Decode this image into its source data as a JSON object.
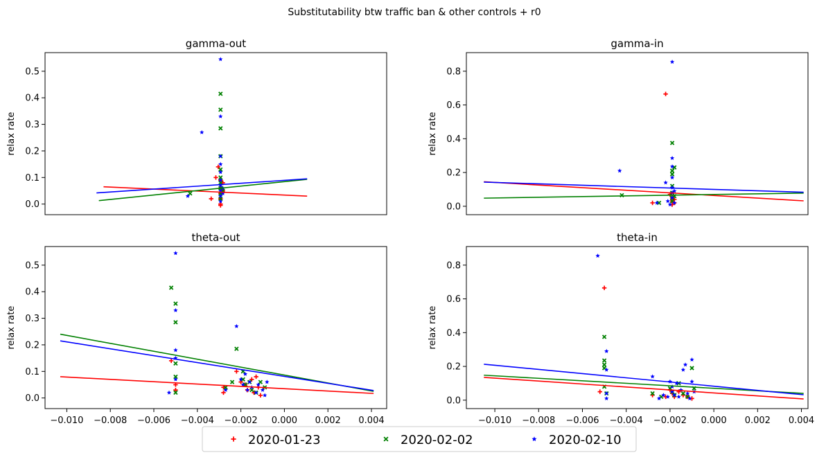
{
  "figure": {
    "title": "Substitutability btw traffic ban & other controls + r0",
    "legend": {
      "placement": "bottom-center",
      "entries": [
        {
          "label": "2020-01-23",
          "color": "#ff0000",
          "marker": "plus"
        },
        {
          "label": "2020-02-02",
          "color": "#008000",
          "marker": "x"
        },
        {
          "label": "2020-02-10",
          "color": "#0000ff",
          "marker": "star"
        }
      ]
    }
  },
  "chart_data": [
    {
      "type": "scatter",
      "title": "gamma-out",
      "xlabel": "",
      "ylabel": "relax rate",
      "xlim": [
        -0.0103,
        0.0043
      ],
      "ylim": [
        -0.04,
        0.57
      ],
      "show_xticks": false,
      "yticks": [
        0.0,
        0.1,
        0.2,
        0.3,
        0.4,
        0.5
      ],
      "ytick_labels": [
        "0.0",
        "0.1",
        "0.2",
        "0.3",
        "0.4",
        "0.5"
      ],
      "series": [
        {
          "name": "2020-01-23",
          "color": "#ff0000",
          "marker": "plus",
          "points": [
            [
              -0.0032,
              0.02
            ],
            [
              -0.003,
              0.1
            ],
            [
              -0.0029,
              0.14
            ],
            [
              -0.0028,
              0.09
            ],
            [
              -0.0028,
              0.06
            ],
            [
              -0.0028,
              0.04
            ],
            [
              -0.0028,
              0.02
            ],
            [
              -0.0028,
              0.0
            ],
            [
              -0.0028,
              -0.005
            ],
            [
              -0.0027,
              0.05
            ],
            [
              -0.0027,
              0.08
            ]
          ],
          "fit": [
            [
              -0.0078,
              0.065
            ],
            [
              0.0009,
              0.03
            ]
          ]
        },
        {
          "name": "2020-02-02",
          "color": "#008000",
          "marker": "x",
          "points": [
            [
              -0.0041,
              0.04
            ],
            [
              -0.0028,
              0.415
            ],
            [
              -0.0028,
              0.355
            ],
            [
              -0.0028,
              0.285
            ],
            [
              -0.0028,
              0.18
            ],
            [
              -0.0028,
              0.13
            ],
            [
              -0.0028,
              0.1
            ],
            [
              -0.0028,
              0.08
            ],
            [
              -0.0028,
              0.06
            ],
            [
              -0.0028,
              0.04
            ],
            [
              -0.0028,
              0.02
            ],
            [
              -0.0027,
              0.05
            ]
          ],
          "fit": [
            [
              -0.008,
              0.013
            ],
            [
              0.0009,
              0.093
            ]
          ]
        },
        {
          "name": "2020-02-10",
          "color": "#0000ff",
          "marker": "star",
          "points": [
            [
              -0.0042,
              0.03
            ],
            [
              -0.0036,
              0.27
            ],
            [
              -0.0028,
              0.545
            ],
            [
              -0.0028,
              0.33
            ],
            [
              -0.0028,
              0.18
            ],
            [
              -0.0028,
              0.15
            ],
            [
              -0.0028,
              0.12
            ],
            [
              -0.0028,
              0.09
            ],
            [
              -0.0028,
              0.07
            ],
            [
              -0.0028,
              0.05
            ],
            [
              -0.0028,
              0.03
            ],
            [
              -0.0028,
              0.01
            ],
            [
              -0.0027,
              0.06
            ],
            [
              -0.0027,
              0.04
            ]
          ],
          "fit": [
            [
              -0.0081,
              0.042
            ],
            [
              0.0009,
              0.095
            ]
          ]
        }
      ]
    },
    {
      "type": "scatter",
      "title": "gamma-in",
      "xlabel": "",
      "ylabel": "relax rate",
      "xlim": [
        -0.0113,
        0.0043
      ],
      "ylim": [
        -0.05,
        0.91
      ],
      "show_xticks": false,
      "yticks": [
        0.0,
        0.2,
        0.4,
        0.6,
        0.8
      ],
      "ytick_labels": [
        "0.0",
        "0.2",
        "0.4",
        "0.6",
        "0.8"
      ],
      "series": [
        {
          "name": "2020-01-23",
          "color": "#ff0000",
          "marker": "plus",
          "points": [
            [
              -0.0028,
              0.02
            ],
            [
              -0.0022,
              0.665
            ],
            [
              -0.002,
              0.07
            ],
            [
              -0.0019,
              0.05
            ],
            [
              -0.0019,
              0.03
            ],
            [
              -0.0019,
              0.01
            ],
            [
              -0.0018,
              0.04
            ],
            [
              -0.0018,
              0.02
            ]
          ],
          "fit": [
            [
              -0.0105,
              0.145
            ],
            [
              0.0041,
              0.032
            ]
          ]
        },
        {
          "name": "2020-02-02",
          "color": "#008000",
          "marker": "x",
          "points": [
            [
              -0.0042,
              0.065
            ],
            [
              -0.0025,
              0.02
            ],
            [
              -0.0019,
              0.375
            ],
            [
              -0.0019,
              0.21
            ],
            [
              -0.0019,
              0.19
            ],
            [
              -0.0019,
              0.12
            ],
            [
              -0.0019,
              0.08
            ],
            [
              -0.0019,
              0.05
            ],
            [
              -0.0019,
              0.03
            ],
            [
              -0.0018,
              0.23
            ],
            [
              -0.0018,
              0.06
            ]
          ],
          "fit": [
            [
              -0.0105,
              0.048
            ],
            [
              0.0041,
              0.078
            ]
          ]
        },
        {
          "name": "2020-02-10",
          "color": "#0000ff",
          "marker": "star",
          "points": [
            [
              -0.0043,
              0.21
            ],
            [
              -0.0026,
              0.02
            ],
            [
              -0.0022,
              0.14
            ],
            [
              -0.0021,
              0.03
            ],
            [
              -0.002,
              0.01
            ],
            [
              -0.0019,
              0.855
            ],
            [
              -0.0019,
              0.285
            ],
            [
              -0.0019,
              0.235
            ],
            [
              -0.0019,
              0.17
            ],
            [
              -0.0019,
              0.11
            ],
            [
              -0.0019,
              0.08
            ],
            [
              -0.0019,
              0.05
            ],
            [
              -0.0018,
              0.09
            ],
            [
              -0.0018,
              0.02
            ]
          ],
          "fit": [
            [
              -0.0105,
              0.143
            ],
            [
              0.0041,
              0.083
            ]
          ]
        }
      ]
    },
    {
      "type": "scatter",
      "title": "theta-out",
      "xlabel": "",
      "ylabel": "relax rate",
      "xlim": [
        -0.011,
        0.0047
      ],
      "ylim": [
        -0.04,
        0.57
      ],
      "show_xticks": true,
      "xticks": [
        -0.01,
        -0.008,
        -0.006,
        -0.004,
        -0.002,
        0.0,
        0.002,
        0.004
      ],
      "xtick_labels": [
        "−0.010",
        "−0.008",
        "−0.006",
        "−0.004",
        "−0.002",
        "0.000",
        "0.002",
        "0.004"
      ],
      "yticks": [
        0.0,
        0.1,
        0.2,
        0.3,
        0.4,
        0.5
      ],
      "ytick_labels": [
        "0.0",
        "0.1",
        "0.2",
        "0.3",
        "0.4",
        "0.5"
      ],
      "series": [
        {
          "name": "2020-01-23",
          "color": "#ff0000",
          "marker": "plus",
          "points": [
            [
              -0.0052,
              0.14
            ],
            [
              -0.005,
              0.05
            ],
            [
              -0.005,
              0.03
            ],
            [
              -0.0028,
              0.04
            ],
            [
              -0.0028,
              0.02
            ],
            [
              -0.0022,
              0.1
            ],
            [
              -0.002,
              0.06
            ],
            [
              -0.0018,
              0.05
            ],
            [
              -0.0017,
              0.03
            ],
            [
              -0.0015,
              0.07
            ],
            [
              -0.0014,
              0.02
            ],
            [
              -0.0013,
              0.08
            ],
            [
              -0.0012,
              0.04
            ],
            [
              -0.0011,
              0.01
            ]
          ],
          "fit": [
            [
              -0.0103,
              0.08
            ],
            [
              0.0041,
              0.017
            ]
          ]
        },
        {
          "name": "2020-02-02",
          "color": "#008000",
          "marker": "x",
          "points": [
            [
              -0.0052,
              0.415
            ],
            [
              -0.005,
              0.355
            ],
            [
              -0.005,
              0.285
            ],
            [
              -0.005,
              0.13
            ],
            [
              -0.005,
              0.08
            ],
            [
              -0.005,
              0.02
            ],
            [
              -0.0027,
              0.04
            ],
            [
              -0.0024,
              0.06
            ],
            [
              -0.0022,
              0.185
            ],
            [
              -0.0019,
              0.1
            ],
            [
              -0.0019,
              0.07
            ],
            [
              -0.0018,
              0.05
            ],
            [
              -0.0016,
              0.06
            ],
            [
              -0.0015,
              0.03
            ],
            [
              -0.0013,
              0.02
            ],
            [
              -0.0011,
              0.06
            ],
            [
              -0.0009,
              0.04
            ]
          ],
          "fit": [
            [
              -0.0103,
              0.24
            ],
            [
              0.0041,
              0.025
            ]
          ]
        },
        {
          "name": "2020-02-10",
          "color": "#0000ff",
          "marker": "star",
          "points": [
            [
              -0.0053,
              0.02
            ],
            [
              -0.005,
              0.545
            ],
            [
              -0.005,
              0.33
            ],
            [
              -0.005,
              0.18
            ],
            [
              -0.005,
              0.15
            ],
            [
              -0.005,
              0.07
            ],
            [
              -0.0027,
              0.03
            ],
            [
              -0.0022,
              0.27
            ],
            [
              -0.002,
              0.07
            ],
            [
              -0.0019,
              0.05
            ],
            [
              -0.0018,
              0.09
            ],
            [
              -0.0017,
              0.03
            ],
            [
              -0.0016,
              0.06
            ],
            [
              -0.0015,
              0.04
            ],
            [
              -0.0013,
              0.02
            ],
            [
              -0.0012,
              0.05
            ],
            [
              -0.001,
              0.03
            ],
            [
              -0.0009,
              0.01
            ],
            [
              -0.0008,
              0.06
            ]
          ],
          "fit": [
            [
              -0.0103,
              0.215
            ],
            [
              0.0041,
              0.028
            ]
          ]
        }
      ]
    },
    {
      "type": "scatter",
      "title": "theta-in",
      "xlabel": "",
      "ylabel": "relax rate",
      "xlim": [
        -0.0113,
        0.0043
      ],
      "ylim": [
        -0.05,
        0.91
      ],
      "show_xticks": true,
      "xticks": [
        -0.01,
        -0.008,
        -0.006,
        -0.004,
        -0.002,
        0.0,
        0.002,
        0.004
      ],
      "xtick_labels": [
        "−0.010",
        "−0.008",
        "−0.006",
        "−0.004",
        "−0.002",
        "0.000",
        "0.002",
        "0.004"
      ],
      "yticks": [
        0.0,
        0.2,
        0.4,
        0.6,
        0.8
      ],
      "ytick_labels": [
        "0.0",
        "0.2",
        "0.4",
        "0.6",
        "0.8"
      ],
      "series": [
        {
          "name": "2020-01-23",
          "color": "#ff0000",
          "marker": "plus",
          "points": [
            [
              -0.0052,
              0.05
            ],
            [
              -0.005,
              0.665
            ],
            [
              -0.0028,
              0.03
            ],
            [
              -0.0022,
              0.02
            ],
            [
              -0.002,
              0.06
            ],
            [
              -0.0019,
              0.04
            ],
            [
              -0.0018,
              0.02
            ],
            [
              -0.0016,
              0.05
            ],
            [
              -0.0014,
              0.03
            ],
            [
              -0.0012,
              0.02
            ],
            [
              -0.001,
              0.01
            ]
          ],
          "fit": [
            [
              -0.0105,
              0.135
            ],
            [
              0.0041,
              0.007
            ]
          ]
        },
        {
          "name": "2020-02-02",
          "color": "#008000",
          "marker": "x",
          "points": [
            [
              -0.005,
              0.375
            ],
            [
              -0.005,
              0.235
            ],
            [
              -0.005,
              0.21
            ],
            [
              -0.005,
              0.19
            ],
            [
              -0.005,
              0.08
            ],
            [
              -0.0049,
              0.04
            ],
            [
              -0.0028,
              0.04
            ],
            [
              -0.0024,
              0.02
            ],
            [
              -0.002,
              0.07
            ],
            [
              -0.0019,
              0.05
            ],
            [
              -0.0018,
              0.03
            ],
            [
              -0.0016,
              0.1
            ],
            [
              -0.0014,
              0.04
            ],
            [
              -0.0012,
              0.02
            ],
            [
              -0.001,
              0.19
            ],
            [
              -0.0009,
              0.07
            ]
          ],
          "fit": [
            [
              -0.0105,
              0.148
            ],
            [
              0.0041,
              0.04
            ]
          ]
        },
        {
          "name": "2020-02-10",
          "color": "#0000ff",
          "marker": "star",
          "points": [
            [
              -0.0053,
              0.855
            ],
            [
              -0.0049,
              0.29
            ],
            [
              -0.0049,
              0.18
            ],
            [
              -0.0049,
              0.04
            ],
            [
              -0.0049,
              0.01
            ],
            [
              -0.0028,
              0.14
            ],
            [
              -0.0025,
              0.01
            ],
            [
              -0.0023,
              0.03
            ],
            [
              -0.0021,
              0.02
            ],
            [
              -0.002,
              0.11
            ],
            [
              -0.0019,
              0.08
            ],
            [
              -0.0019,
              0.05
            ],
            [
              -0.0018,
              0.03
            ],
            [
              -0.0017,
              0.1
            ],
            [
              -0.0016,
              0.02
            ],
            [
              -0.0015,
              0.06
            ],
            [
              -0.0014,
              0.18
            ],
            [
              -0.0013,
              0.21
            ],
            [
              -0.0012,
              0.04
            ],
            [
              -0.0011,
              0.01
            ],
            [
              -0.001,
              0.24
            ],
            [
              -0.001,
              0.11
            ],
            [
              -0.0009,
              0.05
            ]
          ],
          "fit": [
            [
              -0.0105,
              0.213
            ],
            [
              0.0041,
              0.032
            ]
          ]
        }
      ]
    }
  ]
}
